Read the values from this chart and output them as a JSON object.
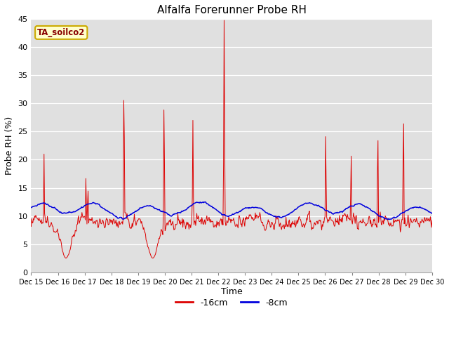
{
  "title": "Alfalfa Forerunner Probe RH",
  "ylabel": "Probe RH (%)",
  "xlabel": "Time",
  "ylim": [
    0,
    45
  ],
  "yticks": [
    0,
    5,
    10,
    15,
    20,
    25,
    30,
    35,
    40,
    45
  ],
  "fig_bg": "#ffffff",
  "plot_bg": "#e0e0e0",
  "legend_label": "TA_soilco2",
  "legend_box_facecolor": "#ffffcc",
  "legend_box_edgecolor": "#ccaa00",
  "line1_color": "#dd0000",
  "line2_color": "#0000dd",
  "line1_label": "-16cm",
  "line2_label": "-8cm",
  "n_points": 720,
  "x_start": 15.0,
  "x_end": 30.0,
  "xtick_positions": [
    15,
    16,
    17,
    18,
    19,
    20,
    21,
    22,
    23,
    24,
    25,
    26,
    27,
    28,
    29,
    30
  ],
  "xtick_labels": [
    "Dec 15",
    "Dec 16",
    "Dec 17",
    "Dec 18",
    "Dec 19",
    "Dec 20",
    "Dec 21",
    "Dec 22",
    "Dec 23",
    "Dec 24",
    "Dec 25",
    "Dec 26",
    "Dec 27",
    "Dec 28",
    "Dec 29",
    "Dec 30"
  ]
}
